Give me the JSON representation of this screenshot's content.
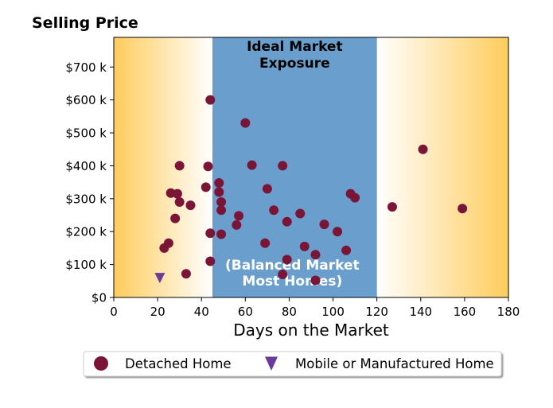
{
  "chart_data": {
    "type": "scatter",
    "title": "Selling Price",
    "xlabel": "Days on the Market",
    "ylabel": "",
    "xlim": [
      0,
      180
    ],
    "ylim": [
      0,
      790000
    ],
    "x_ticks": [
      0,
      20,
      40,
      60,
      80,
      100,
      120,
      140,
      160,
      180
    ],
    "x_tick_labels": [
      "0",
      "20",
      "40",
      "60",
      "80",
      "100",
      "120",
      "140",
      "160",
      "180"
    ],
    "y_ticks": [
      0,
      100000,
      200000,
      300000,
      400000,
      500000,
      600000,
      700000
    ],
    "y_tick_labels": [
      "$0",
      "$100 k",
      "$200 k",
      "$300 k",
      "$400 k",
      "$500 k",
      "$600 k",
      "$700 k"
    ],
    "grid": false,
    "legend_placement": "below",
    "bands": [
      {
        "from": 0,
        "to": 45,
        "fill": "gradient-left",
        "color": "#ffcc5c"
      },
      {
        "from": 45,
        "to": 120,
        "fill": "solid",
        "color": "#6a9fcd",
        "label_top": "Ideal Market\nExposure",
        "label_bottom": "(Balanced Market\nMost Homes)"
      },
      {
        "from": 120,
        "to": 180,
        "fill": "gradient-right",
        "color": "#ffcc5c"
      }
    ],
    "series": [
      {
        "name": "Detached Home",
        "marker": "circle",
        "color": "#7b1538",
        "points": [
          [
            23,
            150000
          ],
          [
            25,
            165000
          ],
          [
            26,
            317000
          ],
          [
            28,
            240000
          ],
          [
            29,
            315000
          ],
          [
            30,
            290000
          ],
          [
            30,
            400000
          ],
          [
            33,
            72000
          ],
          [
            35,
            280000
          ],
          [
            42,
            335000
          ],
          [
            43,
            398000
          ],
          [
            44,
            110000
          ],
          [
            44,
            195000
          ],
          [
            44,
            600000
          ],
          [
            48,
            348000
          ],
          [
            48,
            320000
          ],
          [
            49,
            290000
          ],
          [
            49,
            265000
          ],
          [
            49,
            192000
          ],
          [
            56,
            220000
          ],
          [
            57,
            248000
          ],
          [
            60,
            530000
          ],
          [
            63,
            402000
          ],
          [
            69,
            165000
          ],
          [
            70,
            330000
          ],
          [
            73,
            265000
          ],
          [
            77,
            400000
          ],
          [
            77,
            70000
          ],
          [
            79,
            230000
          ],
          [
            79,
            115000
          ],
          [
            85,
            255000
          ],
          [
            87,
            155000
          ],
          [
            92,
            130000
          ],
          [
            92,
            52000
          ],
          [
            96,
            222000
          ],
          [
            102,
            200000
          ],
          [
            106,
            143000
          ],
          [
            108,
            315000
          ],
          [
            110,
            303000
          ],
          [
            127,
            275000
          ],
          [
            141,
            450000
          ],
          [
            159,
            270000
          ]
        ]
      },
      {
        "name": "Mobile or Manufactured Home",
        "marker": "triangle-down",
        "color": "#6a3a9c",
        "points": [
          [
            21,
            60000
          ]
        ]
      }
    ]
  }
}
